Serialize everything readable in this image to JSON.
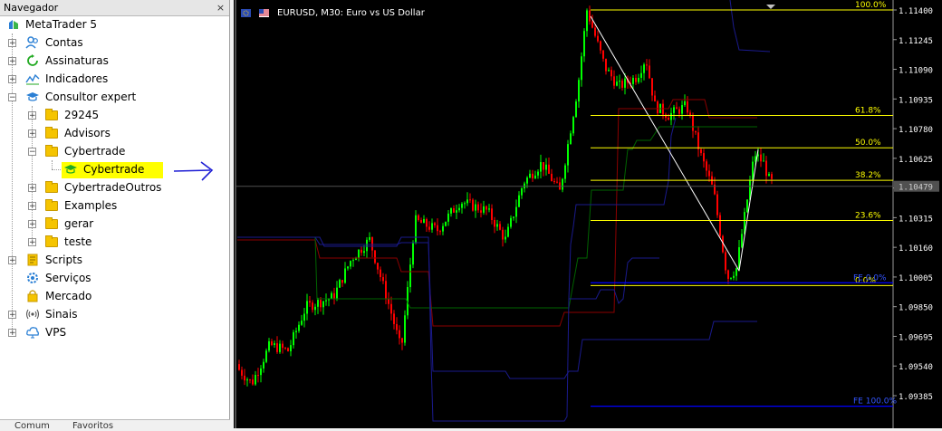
{
  "navigator": {
    "title": "Navegador",
    "close": "×",
    "items": [
      {
        "label": "MetaTrader 5",
        "icon": "metatrader-icon"
      },
      {
        "label": "Contas",
        "icon": "accounts-icon"
      },
      {
        "label": "Assinaturas",
        "icon": "subscriptions-icon"
      },
      {
        "label": "Indicadores",
        "icon": "indicators-icon"
      },
      {
        "label": "Consultor expert",
        "icon": "expert-advisor-icon"
      },
      {
        "label": "29245",
        "icon": "folder-icon"
      },
      {
        "label": "Advisors",
        "icon": "folder-icon"
      },
      {
        "label": "Cybertrade",
        "icon": "folder-icon"
      },
      {
        "label": "Cybertrade",
        "icon": "expert-advisor-icon"
      },
      {
        "label": "CybertradeOutros",
        "icon": "folder-icon"
      },
      {
        "label": "Examples",
        "icon": "folder-icon"
      },
      {
        "label": "gerar",
        "icon": "folder-icon"
      },
      {
        "label": "teste",
        "icon": "folder-icon"
      },
      {
        "label": "Scripts",
        "icon": "scripts-icon"
      },
      {
        "label": "Serviços",
        "icon": "services-icon"
      },
      {
        "label": "Mercado",
        "icon": "market-icon"
      },
      {
        "label": "Sinais",
        "icon": "signals-icon"
      },
      {
        "label": "VPS",
        "icon": "vps-icon"
      }
    ],
    "highlight_color": "#ffff00",
    "bottom_tabs": [
      "Comum",
      "Favoritos"
    ]
  },
  "chart": {
    "title": "EURUSD, M30:  Euro vs US Dollar",
    "price_axis": [
      "1.11400",
      "1.11245",
      "1.11090",
      "1.10935",
      "1.10780",
      "1.10625",
      "1.10470",
      "1.10315",
      "1.10160",
      "1.10005",
      "1.09850",
      "1.09695",
      "1.09540",
      "1.09385"
    ],
    "current_price": "1.10479",
    "fibo_levels": [
      {
        "label": "100.0%",
        "price": 1.114
      },
      {
        "label": "61.8%",
        "price": 1.10849
      },
      {
        "label": "50.0%",
        "price": 1.1068
      },
      {
        "label": "38.2%",
        "price": 1.1051
      },
      {
        "label": "23.6%",
        "price": 1.103
      },
      {
        "label": "0.0%",
        "price": 1.0996
      }
    ],
    "fe_labels": [
      "FE 0.0%",
      "FE 100.0%"
    ],
    "colors": {
      "bull": "#00ff00",
      "bear": "#ff0000",
      "fibo": "#ffff00",
      "fe": "#0000ff",
      "band_upper": "#8b0000",
      "band_lower": "#1a1a8c",
      "mid": "#006400"
    }
  }
}
